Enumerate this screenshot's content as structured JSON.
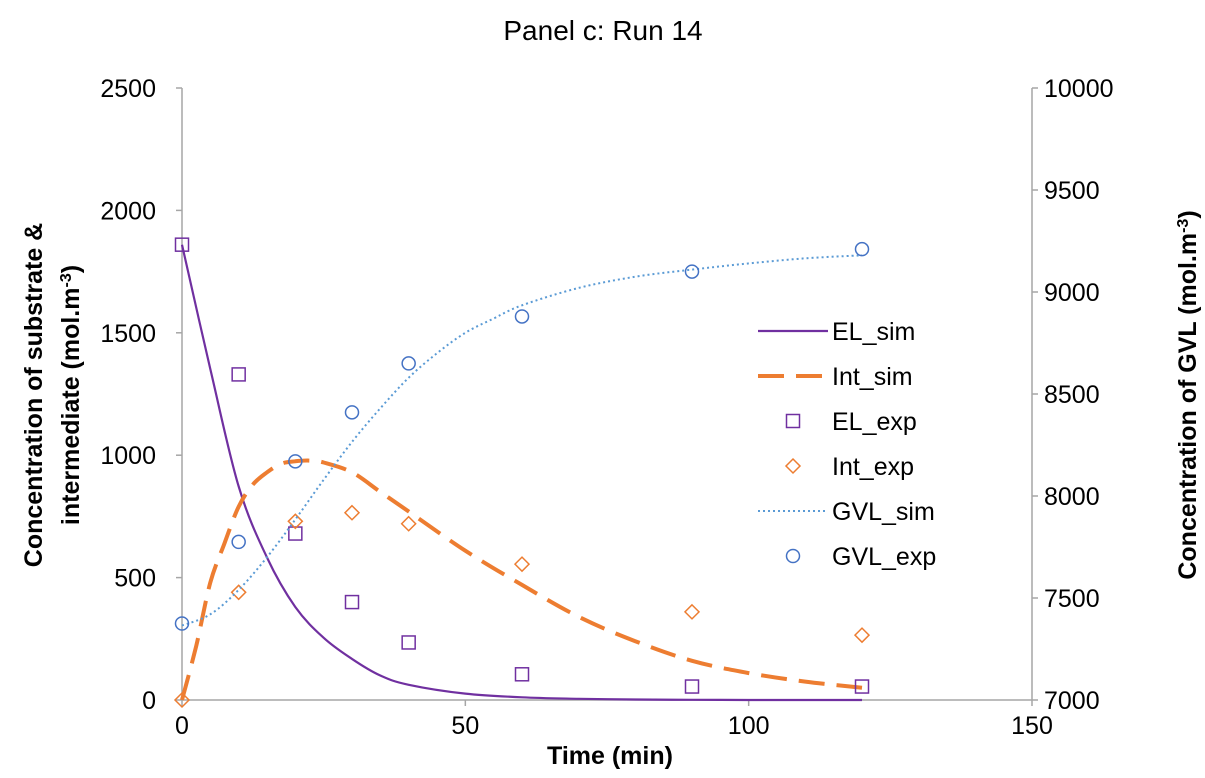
{
  "chart_data": {
    "type": "scatter",
    "title": "Panel c: Run 14",
    "xlabel": "Time (min)",
    "ylabel_left": [
      "Concentration of substrate &",
      "intermediate (mol.m",
      "-3",
      ")"
    ],
    "ylabel_right": [
      "Concentration of GVL (mol.m",
      "-3",
      ")"
    ],
    "xlim": [
      0,
      150
    ],
    "ylim_left": [
      0,
      2500
    ],
    "ylim_right": [
      7000,
      10000
    ],
    "x_ticks": [
      "0",
      "50",
      "100",
      "150"
    ],
    "y_left_ticks": [
      "0",
      "500",
      "1000",
      "1500",
      "2000",
      "2500"
    ],
    "y_right_ticks": [
      "7000",
      "7500",
      "8000",
      "8500",
      "9000",
      "9500",
      "10000"
    ],
    "grid": false,
    "legend_position": "right",
    "colors": {
      "EL": "#7030a0",
      "Int": "#ed7d31",
      "GVL": "#4472c4",
      "GVL_sim": "#5b9bd5",
      "axis": "#a6a6a6"
    },
    "series": [
      {
        "name": "EL_sim",
        "kind": "line",
        "style": "solid",
        "axis": "left",
        "x": [
          0,
          5,
          10,
          15,
          20,
          25,
          30,
          35,
          40,
          50,
          60,
          70,
          80,
          90,
          100,
          110,
          120
        ],
        "y": [
          1860,
          1352,
          872,
          582,
          380,
          254,
          168,
          100,
          62,
          26,
          11,
          5,
          2,
          1,
          0,
          0,
          0
        ]
      },
      {
        "name": "Int_sim",
        "kind": "line",
        "style": "dashed",
        "axis": "left",
        "x": [
          0,
          2.5,
          5,
          7.5,
          10,
          12.5,
          15,
          17.5,
          20,
          22.5,
          25,
          30,
          35,
          40,
          50,
          60,
          70,
          80,
          90,
          100,
          110,
          120
        ],
        "y": [
          0,
          220,
          480,
          640,
          790,
          880,
          930,
          965,
          975,
          978,
          970,
          930,
          850,
          770,
          610,
          470,
          340,
          240,
          160,
          110,
          75,
          50
        ]
      },
      {
        "name": "EL_exp",
        "kind": "scatter",
        "marker": "square",
        "axis": "left",
        "x": [
          0,
          10,
          20,
          30,
          40,
          60,
          90,
          120
        ],
        "y": [
          1860,
          1330,
          680,
          400,
          235,
          105,
          55,
          55
        ]
      },
      {
        "name": "Int_exp",
        "kind": "scatter",
        "marker": "diamond",
        "axis": "left",
        "x": [
          0,
          10,
          20,
          30,
          40,
          60,
          90,
          120
        ],
        "y": [
          0,
          440,
          730,
          765,
          720,
          555,
          360,
          265
        ]
      },
      {
        "name": "GVL_sim",
        "kind": "line",
        "style": "dotted",
        "axis": "right",
        "x": [
          0,
          5,
          10,
          15,
          20,
          25,
          30,
          35,
          40,
          45,
          50,
          55,
          60,
          70,
          80,
          90,
          100,
          110,
          120
        ],
        "y": [
          7365,
          7420,
          7540,
          7700,
          7885,
          8080,
          8265,
          8430,
          8580,
          8700,
          8800,
          8870,
          8935,
          9020,
          9075,
          9110,
          9140,
          9165,
          9180
        ]
      },
      {
        "name": "GVL_exp",
        "kind": "scatter",
        "marker": "circle",
        "axis": "right",
        "x": [
          0,
          10,
          20,
          30,
          40,
          60,
          90,
          120
        ],
        "y": [
          7375,
          7775,
          8170,
          8410,
          8650,
          8880,
          9100,
          9210
        ]
      }
    ]
  }
}
